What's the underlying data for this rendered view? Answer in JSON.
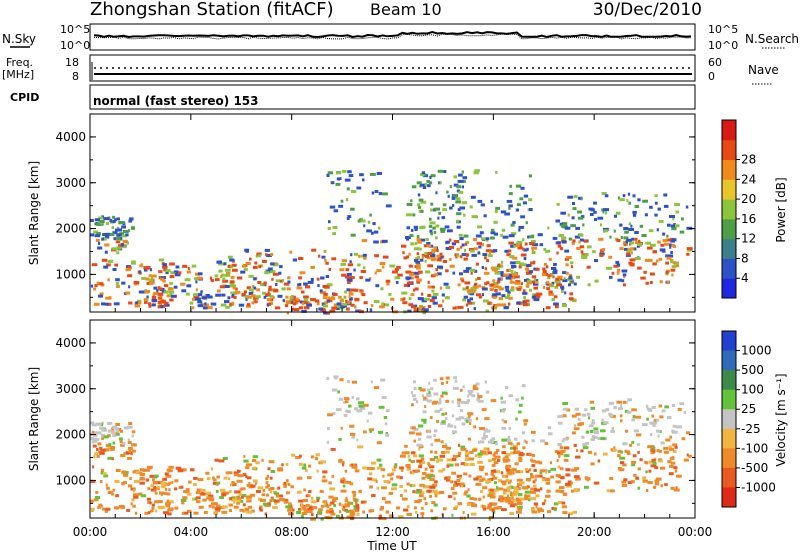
{
  "header": {
    "station": "Zhongshan Station (fitACF)",
    "beam": "Beam 10",
    "date": "30/Dec/2010"
  },
  "noise_panel": {
    "left_label": "N.Sky",
    "right_label": "N.Search",
    "left_ticks": [
      "10^5",
      "10^0"
    ],
    "right_ticks": [
      "10^5",
      "10^0"
    ]
  },
  "freq_panel": {
    "left_label_line1": "Freq.",
    "left_label_line2": "[MHz]",
    "right_label": "Nave",
    "left_ticks": [
      "18",
      "8"
    ],
    "right_ticks": [
      "60",
      "0"
    ]
  },
  "cpid_panel": {
    "left_label": "CPID",
    "text": "normal (fast stereo) 153"
  },
  "chart_data": [
    {
      "type": "heatmap",
      "name": "power",
      "ylabel": "Slant Range [km]",
      "xlabel": "",
      "y_ticks": [
        "1000",
        "2000",
        "3000",
        "4000"
      ],
      "ylim": [
        180,
        4500
      ],
      "colorbar_label": "Power [dB]",
      "colorbar_ticks": [
        "4",
        "8",
        "12",
        "16",
        "20",
        "24",
        "28"
      ],
      "colorbar_colors": [
        "#1f26e0",
        "#2d52c8",
        "#3a7f8a",
        "#4e9d47",
        "#8cc53b",
        "#e9c42a",
        "#f08a1d",
        "#e84a17",
        "#d81a14"
      ]
    },
    {
      "type": "heatmap",
      "name": "velocity",
      "ylabel": "Slant Range [km]",
      "xlabel": "Time UT",
      "x_ticks": [
        "00:00",
        "04:00",
        "08:00",
        "12:00",
        "16:00",
        "20:00",
        "00:00"
      ],
      "y_ticks": [
        "1000",
        "2000",
        "3000",
        "4000"
      ],
      "ylim": [
        180,
        4500
      ],
      "colorbar_label": "Velocity [m s⁻¹]",
      "colorbar_ticks": [
        "1000",
        "500",
        "100",
        "25",
        "-25",
        "-100",
        "-500",
        "-1000"
      ],
      "colorbar_colors": [
        "#2340d0",
        "#2f6bb8",
        "#3b8a4a",
        "#62c23a",
        "#c4c4c4",
        "#f0b640",
        "#ef8a2a",
        "#e85a20",
        "#e02a18"
      ]
    }
  ]
}
